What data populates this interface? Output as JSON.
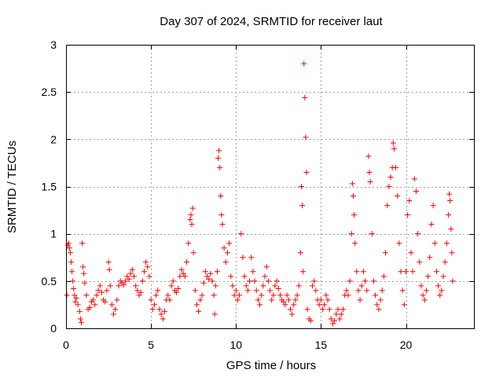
{
  "chart_data": {
    "type": "scatter",
    "title": "Day 307 of 2024, SRMTID for receiver laut",
    "xlabel": "GPS time / hours",
    "ylabel": "SRMTID / TECUs",
    "xlim": [
      0,
      24
    ],
    "ylim": [
      0,
      3
    ],
    "xticks": [
      0,
      5,
      10,
      15,
      20
    ],
    "xtick_labels": [
      "0",
      "5",
      "10",
      "15",
      "20"
    ],
    "yticks": [
      0,
      0.5,
      1,
      1.5,
      2,
      2.5,
      3
    ],
    "ytick_labels": [
      "0",
      "0.5",
      "1",
      "1.5",
      "2",
      "2.5",
      "3"
    ],
    "grid": true,
    "marker": "+",
    "colors": {
      "series": "#ff0000",
      "grid": "#a0a0a0",
      "axes": "#000000"
    },
    "series": [
      {
        "name": "SRMTID",
        "points": [
          [
            0.05,
            0.35
          ],
          [
            0.1,
            0.88
          ],
          [
            0.15,
            0.9
          ],
          [
            0.2,
            0.85
          ],
          [
            0.25,
            0.8
          ],
          [
            0.3,
            0.7
          ],
          [
            0.35,
            0.6
          ],
          [
            0.4,
            0.5
          ],
          [
            0.45,
            0.42
          ],
          [
            0.5,
            0.35
          ],
          [
            0.55,
            0.28
          ],
          [
            0.6,
            0.32
          ],
          [
            0.7,
            0.25
          ],
          [
            0.8,
            0.18
          ],
          [
            0.85,
            0.1
          ],
          [
            0.9,
            0.06
          ],
          [
            0.95,
            0.9
          ],
          [
            1.0,
            0.65
          ],
          [
            1.05,
            0.58
          ],
          [
            1.1,
            0.48
          ],
          [
            1.2,
            0.35
          ],
          [
            1.3,
            0.2
          ],
          [
            1.4,
            0.22
          ],
          [
            1.5,
            0.28
          ],
          [
            1.6,
            0.3
          ],
          [
            1.7,
            0.25
          ],
          [
            1.8,
            0.35
          ],
          [
            1.9,
            0.4
          ],
          [
            2.0,
            0.45
          ],
          [
            2.1,
            0.38
          ],
          [
            2.2,
            0.3
          ],
          [
            2.3,
            0.28
          ],
          [
            2.4,
            0.4
          ],
          [
            2.5,
            0.7
          ],
          [
            2.55,
            0.62
          ],
          [
            2.6,
            0.45
          ],
          [
            2.7,
            0.25
          ],
          [
            2.8,
            0.15
          ],
          [
            2.9,
            0.2
          ],
          [
            3.0,
            0.3
          ],
          [
            3.1,
            0.45
          ],
          [
            3.2,
            0.5
          ],
          [
            3.3,
            0.48
          ],
          [
            3.4,
            0.46
          ],
          [
            3.5,
            0.5
          ],
          [
            3.6,
            0.55
          ],
          [
            3.7,
            0.52
          ],
          [
            3.8,
            0.58
          ],
          [
            3.9,
            0.62
          ],
          [
            4.0,
            0.55
          ],
          [
            4.1,
            0.45
          ],
          [
            4.2,
            0.4
          ],
          [
            4.3,
            0.35
          ],
          [
            4.4,
            0.38
          ],
          [
            4.5,
            0.5
          ],
          [
            4.6,
            0.6
          ],
          [
            4.7,
            0.7
          ],
          [
            4.8,
            0.65
          ],
          [
            4.9,
            0.55
          ],
          [
            5.0,
            0.3
          ],
          [
            5.1,
            0.2
          ],
          [
            5.2,
            0.25
          ],
          [
            5.3,
            0.35
          ],
          [
            5.4,
            0.4
          ],
          [
            5.5,
            0.2
          ],
          [
            5.6,
            0.15
          ],
          [
            5.7,
            0.1
          ],
          [
            5.8,
            0.18
          ],
          [
            5.9,
            0.3
          ],
          [
            6.0,
            0.35
          ],
          [
            6.1,
            0.3
          ],
          [
            6.2,
            0.45
          ],
          [
            6.3,
            0.5
          ],
          [
            6.4,
            0.4
          ],
          [
            6.5,
            0.38
          ],
          [
            6.6,
            0.42
          ],
          [
            6.7,
            0.55
          ],
          [
            6.8,
            0.62
          ],
          [
            6.9,
            0.58
          ],
          [
            7.0,
            0.55
          ],
          [
            7.1,
            0.7
          ],
          [
            7.2,
            0.9
          ],
          [
            7.3,
            1.15
          ],
          [
            7.35,
            1.2
          ],
          [
            7.4,
            1.1
          ],
          [
            7.45,
            1.27
          ],
          [
            7.5,
            0.8
          ],
          [
            7.6,
            0.4
          ],
          [
            7.7,
            0.25
          ],
          [
            7.8,
            0.18
          ],
          [
            7.9,
            0.3
          ],
          [
            8.0,
            0.35
          ],
          [
            8.1,
            0.48
          ],
          [
            8.2,
            0.6
          ],
          [
            8.3,
            0.55
          ],
          [
            8.4,
            0.52
          ],
          [
            8.5,
            0.58
          ],
          [
            8.6,
            0.5
          ],
          [
            8.7,
            0.35
          ],
          [
            8.75,
            0.15
          ],
          [
            8.8,
            0.45
          ],
          [
            8.9,
            0.6
          ],
          [
            8.95,
            1.8
          ],
          [
            9.0,
            1.88
          ],
          [
            9.05,
            1.7
          ],
          [
            9.1,
            1.4
          ],
          [
            9.15,
            1.2
          ],
          [
            9.2,
            1.1
          ],
          [
            9.3,
            0.85
          ],
          [
            9.4,
            0.7
          ],
          [
            9.5,
            0.8
          ],
          [
            9.6,
            0.9
          ],
          [
            9.7,
            0.55
          ],
          [
            9.8,
            0.45
          ],
          [
            9.9,
            0.35
          ],
          [
            10.0,
            0.4
          ],
          [
            10.1,
            0.3
          ],
          [
            10.2,
            0.35
          ],
          [
            10.3,
            1.0
          ],
          [
            10.4,
            0.75
          ],
          [
            10.5,
            0.55
          ],
          [
            10.6,
            0.45
          ],
          [
            10.7,
            0.4
          ],
          [
            10.8,
            0.5
          ],
          [
            10.9,
            0.75
          ],
          [
            11.0,
            0.6
          ],
          [
            11.1,
            0.5
          ],
          [
            11.2,
            0.4
          ],
          [
            11.3,
            0.3
          ],
          [
            11.4,
            0.25
          ],
          [
            11.5,
            0.35
          ],
          [
            11.6,
            0.45
          ],
          [
            11.7,
            0.55
          ],
          [
            11.8,
            0.65
          ],
          [
            11.9,
            0.5
          ],
          [
            12.0,
            0.4
          ],
          [
            12.1,
            0.3
          ],
          [
            12.2,
            0.35
          ],
          [
            12.3,
            0.45
          ],
          [
            12.4,
            0.5
          ],
          [
            12.5,
            0.42
          ],
          [
            12.6,
            0.35
          ],
          [
            12.7,
            0.3
          ],
          [
            12.8,
            0.28
          ],
          [
            12.9,
            0.25
          ],
          [
            13.0,
            0.35
          ],
          [
            13.1,
            0.3
          ],
          [
            13.2,
            0.2
          ],
          [
            13.3,
            0.15
          ],
          [
            13.4,
            0.25
          ],
          [
            13.5,
            0.3
          ],
          [
            13.6,
            0.35
          ],
          [
            13.7,
            0.45
          ],
          [
            13.8,
            0.8
          ],
          [
            13.85,
            1.5
          ],
          [
            13.9,
            1.3
          ],
          [
            13.95,
            0.6
          ],
          [
            14.0,
            2.8
          ],
          [
            14.05,
            2.44
          ],
          [
            14.1,
            2.02
          ],
          [
            14.15,
            1.65
          ],
          [
            14.2,
            0.2
          ],
          [
            14.3,
            0.1
          ],
          [
            14.4,
            0.08
          ],
          [
            14.5,
            0.45
          ],
          [
            14.6,
            0.5
          ],
          [
            14.7,
            0.4
          ],
          [
            14.8,
            0.3
          ],
          [
            14.9,
            0.25
          ],
          [
            15.0,
            0.3
          ],
          [
            15.1,
            0.2
          ],
          [
            15.2,
            0.25
          ],
          [
            15.3,
            0.35
          ],
          [
            15.4,
            0.3
          ],
          [
            15.5,
            0.2
          ],
          [
            15.6,
            0.1
          ],
          [
            15.7,
            0.05
          ],
          [
            15.8,
            0.08
          ],
          [
            15.9,
            0.15
          ],
          [
            16.0,
            0.2
          ],
          [
            16.1,
            0.1
          ],
          [
            16.2,
            0.15
          ],
          [
            16.3,
            0.2
          ],
          [
            16.4,
            0.35
          ],
          [
            16.5,
            0.4
          ],
          [
            16.6,
            0.35
          ],
          [
            16.7,
            0.5
          ],
          [
            16.8,
            1.0
          ],
          [
            16.85,
            1.53
          ],
          [
            16.9,
            1.4
          ],
          [
            16.95,
            1.2
          ],
          [
            17.0,
            0.9
          ],
          [
            17.1,
            0.6
          ],
          [
            17.2,
            0.4
          ],
          [
            17.3,
            0.3
          ],
          [
            17.4,
            0.45
          ],
          [
            17.5,
            0.6
          ],
          [
            17.6,
            0.5
          ],
          [
            17.7,
            0.4
          ],
          [
            17.8,
            1.82
          ],
          [
            17.85,
            1.65
          ],
          [
            17.9,
            1.55
          ],
          [
            18.0,
            1.0
          ],
          [
            18.1,
            0.5
          ],
          [
            18.2,
            0.35
          ],
          [
            18.3,
            0.25
          ],
          [
            18.4,
            0.2
          ],
          [
            18.5,
            0.3
          ],
          [
            18.6,
            0.4
          ],
          [
            18.7,
            0.55
          ],
          [
            18.8,
            0.8
          ],
          [
            18.9,
            1.3
          ],
          [
            19.0,
            1.5
          ],
          [
            19.1,
            1.6
          ],
          [
            19.2,
            1.7
          ],
          [
            19.25,
            1.96
          ],
          [
            19.3,
            1.9
          ],
          [
            19.4,
            1.7
          ],
          [
            19.5,
            1.4
          ],
          [
            19.6,
            0.9
          ],
          [
            19.7,
            0.6
          ],
          [
            19.8,
            0.4
          ],
          [
            19.9,
            0.25
          ],
          [
            20.0,
            0.6
          ],
          [
            20.1,
            1.2
          ],
          [
            20.2,
            1.35
          ],
          [
            20.3,
            0.8
          ],
          [
            20.4,
            0.6
          ],
          [
            20.5,
            1.58
          ],
          [
            20.6,
            1.45
          ],
          [
            20.7,
            1.0
          ],
          [
            20.8,
            0.7
          ],
          [
            20.9,
            0.45
          ],
          [
            21.0,
            0.35
          ],
          [
            21.1,
            0.3
          ],
          [
            21.2,
            0.4
          ],
          [
            21.3,
            0.55
          ],
          [
            21.4,
            0.75
          ],
          [
            21.5,
            1.1
          ],
          [
            21.6,
            1.3
          ],
          [
            21.7,
            0.9
          ],
          [
            21.8,
            0.6
          ],
          [
            21.9,
            0.45
          ],
          [
            22.0,
            0.35
          ],
          [
            22.1,
            0.4
          ],
          [
            22.2,
            0.55
          ],
          [
            22.3,
            0.7
          ],
          [
            22.4,
            0.9
          ],
          [
            22.5,
            1.2
          ],
          [
            22.55,
            1.42
          ],
          [
            22.6,
            1.35
          ],
          [
            22.65,
            1.05
          ],
          [
            22.7,
            0.8
          ],
          [
            22.75,
            0.5
          ]
        ]
      }
    ]
  }
}
